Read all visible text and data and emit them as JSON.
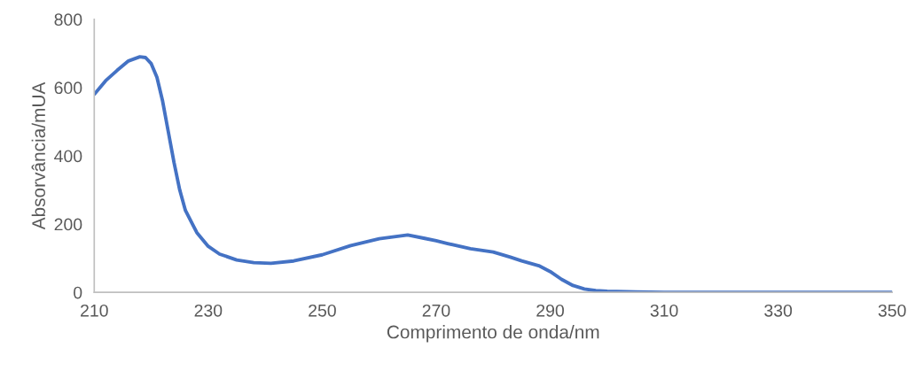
{
  "chart_data": {
    "type": "line",
    "xlabel": "Comprimento de onda/nm",
    "ylabel": "Absorvância/mUA",
    "x": [
      210,
      212,
      214,
      216,
      218,
      219,
      220,
      221,
      222,
      223,
      224,
      225,
      226,
      228,
      230,
      232,
      235,
      238,
      241,
      245,
      250,
      255,
      260,
      265,
      268,
      270,
      272,
      276,
      280,
      283,
      285,
      288,
      290,
      292,
      294,
      296,
      298,
      300,
      305,
      310,
      330,
      350
    ],
    "series": [
      {
        "color": "#4472c4",
        "values": [
          580,
          620,
          650,
          678,
          690,
          688,
          670,
          630,
          560,
          470,
          380,
          300,
          240,
          175,
          135,
          112,
          95,
          87,
          85,
          92,
          110,
          137,
          157,
          168,
          158,
          151,
          143,
          128,
          118,
          103,
          92,
          78,
          61,
          38,
          20,
          10,
          5,
          3,
          1,
          0,
          0,
          0
        ]
      }
    ],
    "xlim": [
      210,
      350
    ],
    "xticks": [
      210,
      230,
      250,
      270,
      290,
      310,
      330,
      350
    ],
    "ylim": [
      0,
      800
    ],
    "yticks": [
      0,
      200,
      400,
      600,
      800
    ],
    "grid": false,
    "marker": "none",
    "line_style": "solid"
  }
}
